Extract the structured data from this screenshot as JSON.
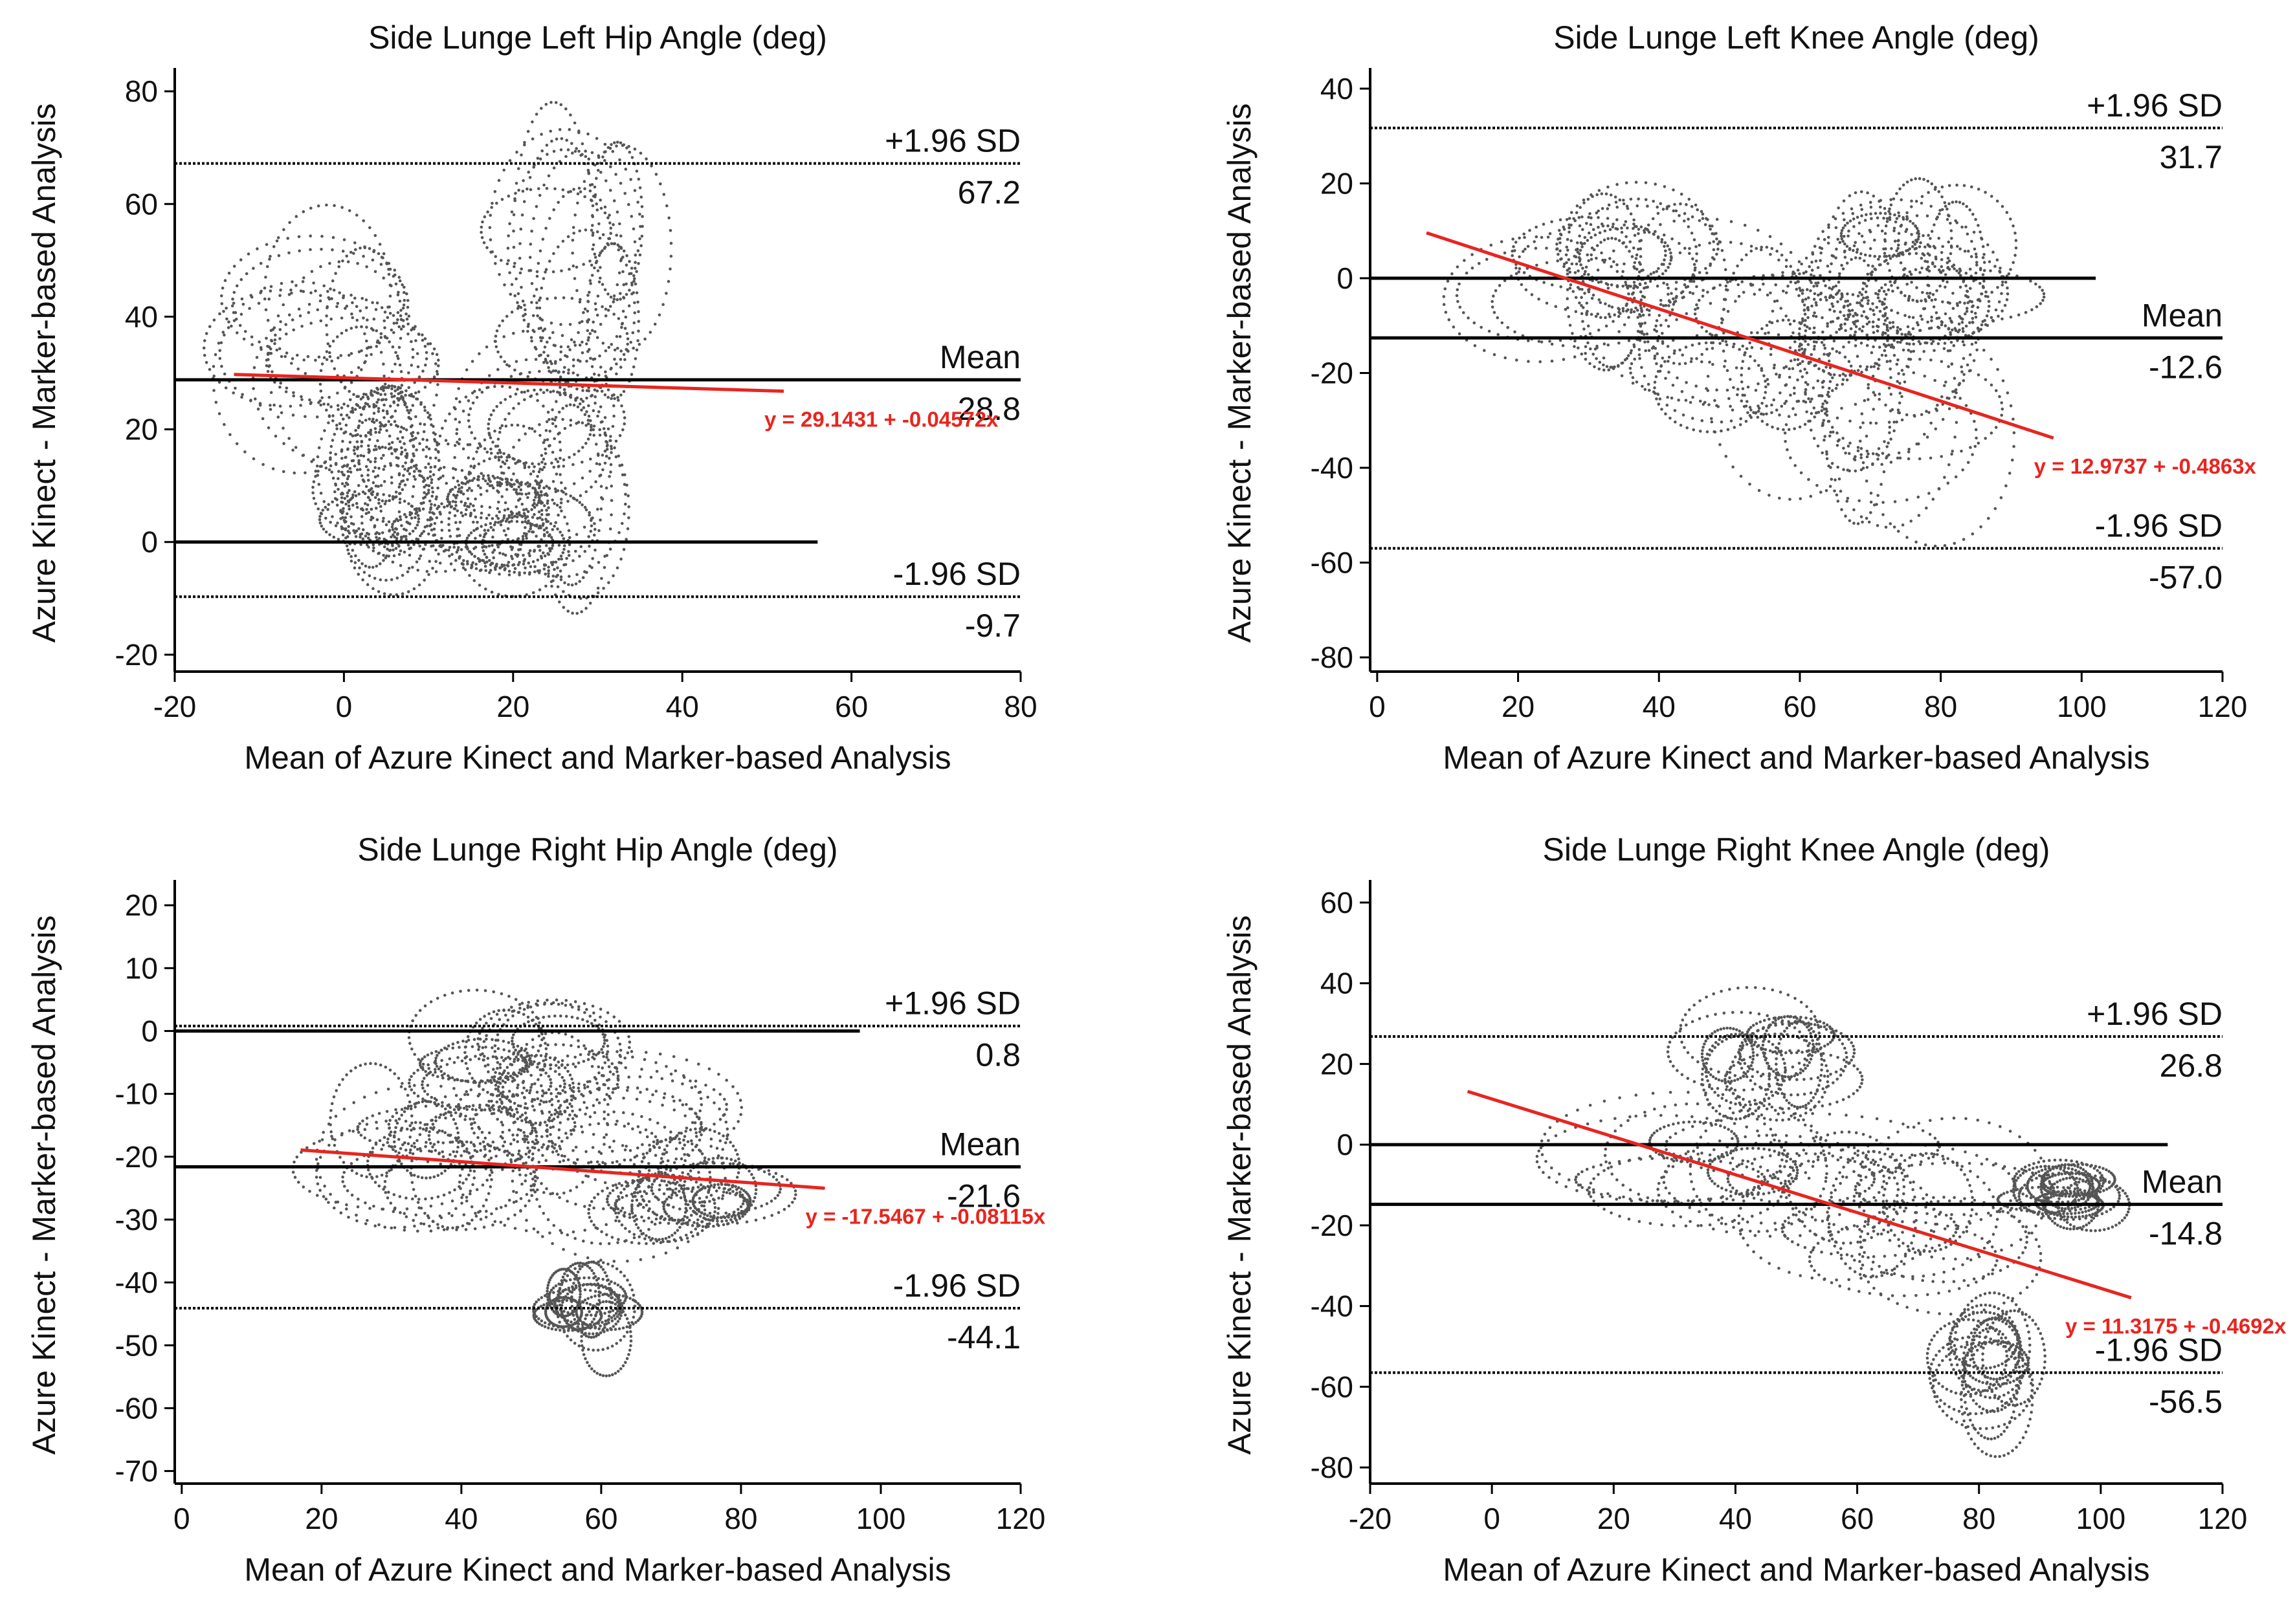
{
  "figure": {
    "shared_xlabel": "Mean of Azure Kinect and Marker-based Analysis",
    "shared_ylabel": "Azure Kinect - Marker-based Analysis"
  },
  "chart_data": [
    {
      "type": "scatter",
      "subtype": "bland-altman",
      "title": "Side Lunge Left Hip Angle (deg)",
      "xlabel": "Mean of Azure Kinect and Marker-based Analysis",
      "ylabel": "Azure Kinect - Marker-based Analysis",
      "xlim": [
        -20,
        80
      ],
      "ylim": [
        -23,
        83
      ],
      "xticks": [
        "-20",
        "0",
        "20",
        "40",
        "60",
        "80"
      ],
      "yticks": [
        "-20",
        "0",
        "20",
        "40",
        "60",
        "80"
      ],
      "upper_loa": {
        "label": "+1.96 SD",
        "value": 67.2,
        "value_text": "67.2"
      },
      "mean": {
        "label": "Mean",
        "value": 28.8,
        "value_text": "28.8"
      },
      "lower_loa": {
        "label": "-1.96 SD",
        "value": -9.7,
        "value_text": "-9.7"
      },
      "zero_line_x": [
        -20,
        56
      ],
      "regression": {
        "intercept": 29.1431,
        "slope": -0.04572,
        "x_range": [
          -13,
          52
        ],
        "equation": "y = 29.1431 + -0.04572x"
      },
      "point_clouds": [
        {
          "cx": -2,
          "cy": 35,
          "rx": 14,
          "ry": 22
        },
        {
          "cx": 5,
          "cy": 10,
          "rx": 9,
          "ry": 18
        },
        {
          "cx": 22,
          "cy": 12,
          "rx": 14,
          "ry": 26
        },
        {
          "cx": 28,
          "cy": 45,
          "rx": 11,
          "ry": 28
        },
        {
          "cx": 16,
          "cy": 3,
          "rx": 15,
          "ry": 13
        }
      ]
    },
    {
      "type": "scatter",
      "subtype": "bland-altman",
      "title": "Side Lunge Left Knee Angle (deg)",
      "xlabel": "Mean of Azure Kinect and Marker-based Analysis",
      "ylabel": "Azure Kinect - Marker-based Analysis",
      "xlim": [
        -1,
        120
      ],
      "ylim": [
        -83,
        43
      ],
      "xticks": [
        "0",
        "20",
        "40",
        "60",
        "80",
        "100",
        "120"
      ],
      "yticks": [
        "-80",
        "-60",
        "-40",
        "-20",
        "0",
        "20",
        "40"
      ],
      "upper_loa": {
        "label": "+1.96 SD",
        "value": 31.7,
        "value_text": "31.7"
      },
      "mean": {
        "label": "Mean",
        "value": -12.6,
        "value_text": "-12.6"
      },
      "lower_loa": {
        "label": "-1.96 SD",
        "value": -57.0,
        "value_text": "-57.0"
      },
      "zero_line_x": [
        -1,
        102
      ],
      "regression": {
        "intercept": 12.9737,
        "slope": -0.4863,
        "x_range": [
          7,
          96
        ],
        "equation": "y = 12.9737 + -0.4863x"
      },
      "point_clouds": [
        {
          "cx": 30,
          "cy": 2,
          "rx": 16,
          "ry": 18
        },
        {
          "cx": 52,
          "cy": -12,
          "rx": 22,
          "ry": 30
        },
        {
          "cx": 72,
          "cy": -22,
          "rx": 18,
          "ry": 34
        },
        {
          "cx": 78,
          "cy": 2,
          "rx": 16,
          "ry": 18
        }
      ]
    },
    {
      "type": "scatter",
      "subtype": "bland-altman",
      "title": "Side Lunge Right Hip Angle (deg)",
      "xlabel": "Mean of Azure Kinect and Marker-based Analysis",
      "ylabel": "Azure Kinect - Marker-based Analysis",
      "xlim": [
        -1,
        120
      ],
      "ylim": [
        -72,
        23
      ],
      "xticks": [
        "0",
        "20",
        "40",
        "60",
        "80",
        "100",
        "120"
      ],
      "yticks": [
        "-70",
        "-60",
        "-50",
        "-40",
        "-30",
        "-20",
        "-10",
        "0",
        "10",
        "20"
      ],
      "upper_loa": {
        "label": "+1.96 SD",
        "value": 0.8,
        "value_text": "0.8"
      },
      "mean": {
        "label": "Mean",
        "value": -21.6,
        "value_text": "-21.6"
      },
      "lower_loa": {
        "label": "-1.96 SD",
        "value": -44.1,
        "value_text": "-44.1"
      },
      "zero_line_x": [
        -1,
        97
      ],
      "regression": {
        "intercept": -17.5467,
        "slope": -0.08115,
        "x_range": [
          17,
          92
        ],
        "equation": "y = -17.5467 + -0.08115x"
      },
      "point_clouds": [
        {
          "cx": 35,
          "cy": -20,
          "rx": 18,
          "ry": 14
        },
        {
          "cx": 55,
          "cy": -18,
          "rx": 24,
          "ry": 16
        },
        {
          "cx": 48,
          "cy": -5,
          "rx": 14,
          "ry": 10
        },
        {
          "cx": 58,
          "cy": -45,
          "rx": 8,
          "ry": 9
        },
        {
          "cx": 72,
          "cy": -25,
          "rx": 14,
          "ry": 10
        }
      ]
    },
    {
      "type": "scatter",
      "subtype": "bland-altman",
      "title": "Side Lunge Right Knee Angle (deg)",
      "xlabel": "Mean of Azure Kinect and Marker-based Analysis",
      "ylabel": "Azure Kinect - Marker-based Analysis",
      "xlim": [
        -20,
        120
      ],
      "ylim": [
        -84,
        64
      ],
      "xticks": [
        "-20",
        "0",
        "20",
        "40",
        "60",
        "80",
        "100",
        "120"
      ],
      "yticks": [
        "-80",
        "-60",
        "-40",
        "-20",
        "0",
        "20",
        "40",
        "60"
      ],
      "upper_loa": {
        "label": "+1.96 SD",
        "value": 26.8,
        "value_text": "26.8"
      },
      "mean": {
        "label": "Mean",
        "value": -14.8,
        "value_text": "-14.8"
      },
      "lower_loa": {
        "label": "-1.96 SD",
        "value": -56.5,
        "value_text": "-56.5"
      },
      "zero_line_x": [
        -20,
        111
      ],
      "regression": {
        "intercept": 11.3175,
        "slope": -0.4692,
        "x_range": [
          -4,
          105
        ],
        "equation": "y = 11.3175 + -0.4692x"
      },
      "point_clouds": [
        {
          "cx": 40,
          "cy": -5,
          "rx": 28,
          "ry": 18
        },
        {
          "cx": 65,
          "cy": -20,
          "rx": 26,
          "ry": 22
        },
        {
          "cx": 82,
          "cy": -55,
          "rx": 10,
          "ry": 18
        },
        {
          "cx": 45,
          "cy": 22,
          "rx": 14,
          "ry": 14
        },
        {
          "cx": 95,
          "cy": -12,
          "rx": 10,
          "ry": 8
        }
      ]
    }
  ]
}
